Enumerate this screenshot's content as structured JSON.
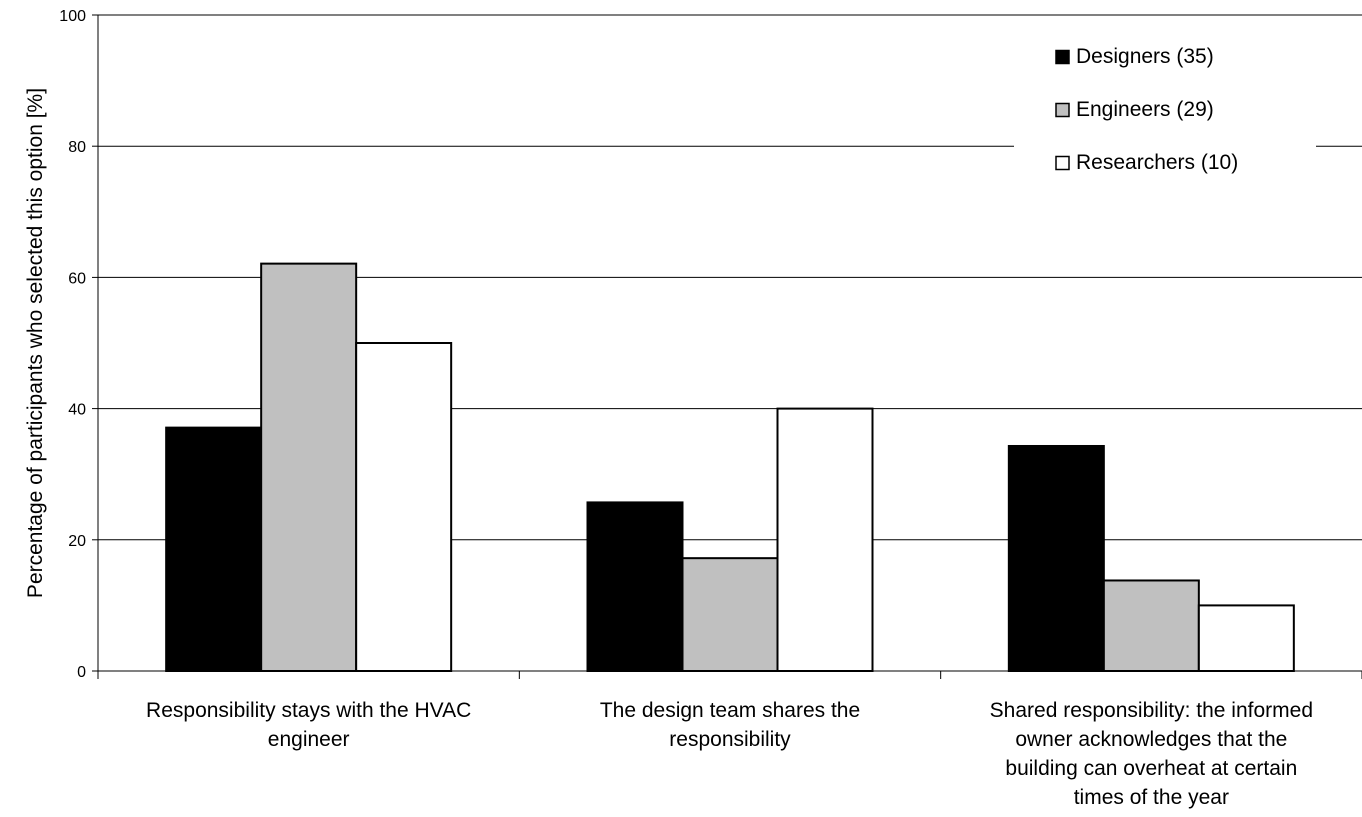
{
  "chart_data": {
    "type": "bar",
    "title": "",
    "xlabel": "",
    "ylabel": "Percentage of participants who selected this option [%]",
    "ylim": [
      0,
      100
    ],
    "yticks": [
      "0",
      "20",
      "40",
      "60",
      "80",
      "100"
    ],
    "grid": true,
    "legend_position": "top-right",
    "categories": [
      [
        "Responsibility stays with the HVAC",
        "engineer"
      ],
      [
        "The design team shares the",
        "responsibility"
      ],
      [
        "Shared responsibility: the informed",
        "owner acknowledges that the",
        "building can overheat at certain",
        "times of the year"
      ]
    ],
    "series": [
      {
        "name": "Designers (35)",
        "color": "#000000",
        "values": [
          37.1,
          25.7,
          34.3
        ]
      },
      {
        "name": "Engineers (29)",
        "color": "#c0c0c0",
        "values": [
          62.1,
          17.2,
          13.8
        ]
      },
      {
        "name": "Researchers (10)",
        "color": "#ffffff",
        "values": [
          50,
          40,
          10
        ]
      }
    ]
  }
}
